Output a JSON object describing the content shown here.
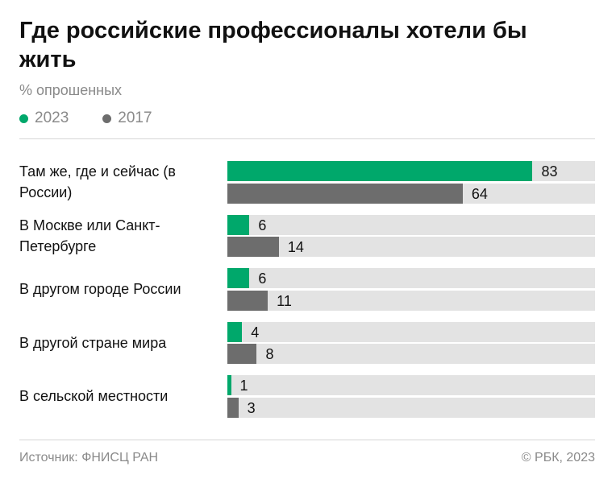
{
  "title": "Где российские профессионалы хотели бы жить",
  "subtitle": "% опрошенных",
  "footer": {
    "source": "Источник: ФНИСЦ РАН",
    "copyright": "© РБК, 2023"
  },
  "colors": {
    "2023": "#00a86b",
    "2017": "#6d6d6d",
    "track": "#e3e3e3"
  },
  "chart_data": {
    "type": "bar",
    "orientation": "horizontal",
    "xlim": [
      0,
      100
    ],
    "categories": [
      "Там же, где и сейчас (в России)",
      "В Москве или Санкт-Петербурге",
      "В другом городе России",
      "В другой стране мира",
      "В сельской местности"
    ],
    "series": [
      {
        "name": "2023",
        "values": [
          83,
          6,
          6,
          4,
          1
        ]
      },
      {
        "name": "2017",
        "values": [
          64,
          14,
          11,
          8,
          3
        ]
      }
    ]
  }
}
